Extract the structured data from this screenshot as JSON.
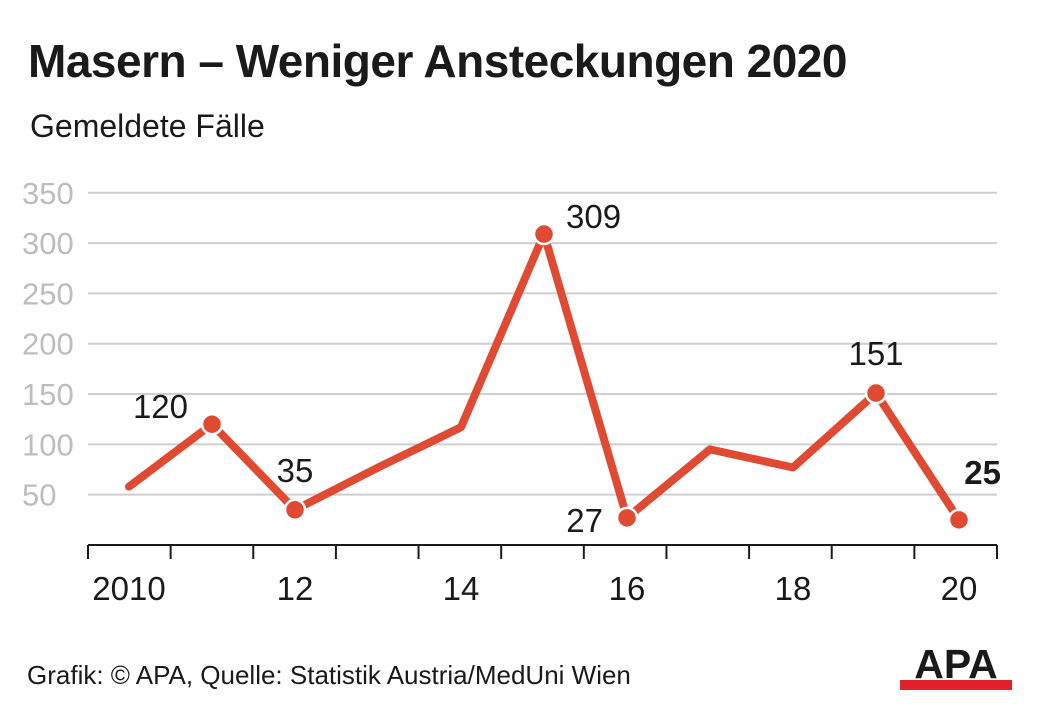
{
  "header": {
    "title": "Masern – Weniger Ansteckungen 2020",
    "subtitle": "Gemeldete Fälle"
  },
  "footer": {
    "source": "Grafik: © APA, Quelle: Statistik Austria/MedUni Wien",
    "logo_text": "APA"
  },
  "colors": {
    "line": "#e04a32",
    "grid": "#cfcfcf",
    "tick_label": "#bdbdbd",
    "text": "#1a1a1a",
    "logo_bar": "#e0202a"
  },
  "chart_data": {
    "type": "line",
    "title": "Masern – Weniger Ansteckungen 2020",
    "subtitle": "Gemeldete Fälle",
    "x": [
      2010,
      2011,
      2012,
      2013,
      2014,
      2015,
      2016,
      2017,
      2018,
      2019,
      2020
    ],
    "x_tick_values": [
      2010,
      2012,
      2014,
      2016,
      2018,
      2020
    ],
    "x_tick_labels": [
      "2010",
      "12",
      "14",
      "16",
      "18",
      "20"
    ],
    "series": [
      {
        "values": [
          58,
          120,
          35,
          77,
          117,
          309,
          27,
          95,
          77,
          151,
          25
        ]
      }
    ],
    "data_labels": [
      {
        "x": 2011,
        "text": "120",
        "bold": false,
        "placement": "above-left"
      },
      {
        "x": 2012,
        "text": "35",
        "bold": false,
        "placement": "above"
      },
      {
        "x": 2015,
        "text": "309",
        "bold": false,
        "placement": "right"
      },
      {
        "x": 2016,
        "text": "27",
        "bold": false,
        "placement": "left"
      },
      {
        "x": 2019,
        "text": "151",
        "bold": false,
        "placement": "above"
      },
      {
        "x": 2020,
        "text": "25",
        "bold": true,
        "placement": "above-right"
      }
    ],
    "marked_points": [
      2011,
      2012,
      2015,
      2016,
      2019,
      2020
    ],
    "y_ticks": [
      50,
      100,
      150,
      200,
      250,
      300,
      350
    ],
    "ylim": [
      0,
      350
    ],
    "xlim": [
      2009.5,
      2020.5
    ],
    "grid": true,
    "xlabel": "",
    "ylabel": ""
  }
}
